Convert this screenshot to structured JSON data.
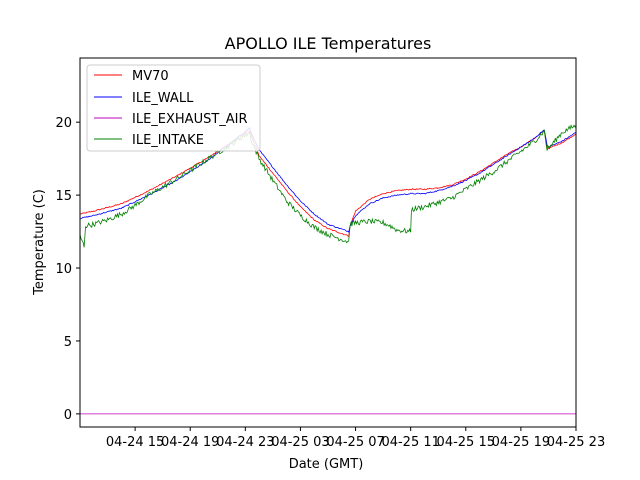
{
  "chart_data": {
    "type": "line",
    "title": "APOLLO ILE Temperatures",
    "xlabel": "Date (GMT)",
    "ylabel": "Temperature (C)",
    "x_unit": "hours since 04-24 11:00 GMT",
    "xlim": [
      0,
      36
    ],
    "ylim": [
      -0.9,
      24.4
    ],
    "x_ticks": [
      {
        "value": 4,
        "label": "04-24 15"
      },
      {
        "value": 8,
        "label": "04-24 19"
      },
      {
        "value": 12,
        "label": "04-24 23"
      },
      {
        "value": 16,
        "label": "04-25 03"
      },
      {
        "value": 20,
        "label": "04-25 07"
      },
      {
        "value": 24,
        "label": "04-25 11"
      },
      {
        "value": 28,
        "label": "04-25 15"
      },
      {
        "value": 32,
        "label": "04-25 19"
      },
      {
        "value": 36,
        "label": "04-25 23"
      }
    ],
    "y_ticks": [
      {
        "value": 0,
        "label": "0"
      },
      {
        "value": 5,
        "label": "5"
      },
      {
        "value": 10,
        "label": "10"
      },
      {
        "value": 15,
        "label": "15"
      },
      {
        "value": 20,
        "label": "20"
      }
    ],
    "legend_position": "top-left",
    "series": [
      {
        "name": "MV70",
        "color": "#ff0000",
        "points": [
          [
            0,
            13.7
          ],
          [
            1,
            13.9
          ],
          [
            3,
            14.4
          ],
          [
            5,
            15.3
          ],
          [
            7,
            16.3
          ],
          [
            9,
            17.4
          ],
          [
            11,
            18.6
          ],
          [
            12.3,
            19.4
          ],
          [
            12.5,
            18.9
          ],
          [
            13,
            17.7
          ],
          [
            14,
            16.5
          ],
          [
            15,
            15.3
          ],
          [
            16,
            14.2
          ],
          [
            17,
            13.3
          ],
          [
            18,
            12.7
          ],
          [
            19.5,
            12.2
          ],
          [
            19.6,
            12.9
          ],
          [
            20,
            13.9
          ],
          [
            21,
            14.7
          ],
          [
            22,
            15.1
          ],
          [
            23,
            15.3
          ],
          [
            24,
            15.4
          ],
          [
            25,
            15.4
          ],
          [
            26,
            15.5
          ],
          [
            27,
            15.7
          ],
          [
            28,
            16.1
          ],
          [
            29,
            16.6
          ],
          [
            30,
            17.2
          ],
          [
            31,
            17.8
          ],
          [
            32,
            18.3
          ],
          [
            33,
            18.9
          ],
          [
            33.7,
            19.4
          ],
          [
            33.9,
            18.3
          ],
          [
            34,
            18.2
          ],
          [
            35,
            18.6
          ],
          [
            36,
            19.2
          ]
        ]
      },
      {
        "name": "ILE_WALL",
        "color": "#0000ff",
        "points": [
          [
            0,
            13.4
          ],
          [
            1,
            13.6
          ],
          [
            3,
            14.1
          ],
          [
            5,
            15.0
          ],
          [
            7,
            16.0
          ],
          [
            9,
            17.2
          ],
          [
            11,
            18.6
          ],
          [
            12.3,
            19.6
          ],
          [
            12.5,
            19.1
          ],
          [
            13,
            18.1
          ],
          [
            14,
            16.9
          ],
          [
            15,
            15.7
          ],
          [
            16,
            14.6
          ],
          [
            17,
            13.7
          ],
          [
            18,
            13.0
          ],
          [
            19.5,
            12.5
          ],
          [
            19.6,
            12.9
          ],
          [
            20,
            13.6
          ],
          [
            21,
            14.4
          ],
          [
            22,
            14.8
          ],
          [
            23,
            15.0
          ],
          [
            24,
            15.1
          ],
          [
            25,
            15.1
          ],
          [
            26,
            15.3
          ],
          [
            27,
            15.6
          ],
          [
            28,
            16.0
          ],
          [
            29,
            16.5
          ],
          [
            30,
            17.1
          ],
          [
            31,
            17.7
          ],
          [
            32,
            18.3
          ],
          [
            33,
            18.9
          ],
          [
            33.7,
            19.5
          ],
          [
            33.9,
            18.4
          ],
          [
            34,
            18.3
          ],
          [
            35,
            18.7
          ],
          [
            36,
            19.3
          ]
        ]
      },
      {
        "name": "ILE_EXHAUST_AIR",
        "color": "#bf00bf",
        "points": [
          [
            0,
            0.0
          ],
          [
            36,
            0.0
          ]
        ]
      },
      {
        "name": "ILE_INTAKE",
        "color": "#008000",
        "points": [
          [
            0,
            12.2
          ],
          [
            0.3,
            11.5
          ],
          [
            0.4,
            12.9
          ],
          [
            1,
            13.0
          ],
          [
            2,
            13.3
          ],
          [
            3,
            13.7
          ],
          [
            4,
            14.3
          ],
          [
            5,
            15.0
          ],
          [
            7,
            16.1
          ],
          [
            9,
            17.3
          ],
          [
            11,
            18.5
          ],
          [
            12.3,
            19.3
          ],
          [
            12.5,
            18.6
          ],
          [
            13,
            17.5
          ],
          [
            14,
            16.0
          ],
          [
            15,
            14.6
          ],
          [
            16,
            13.6
          ],
          [
            17,
            12.8
          ],
          [
            18,
            12.3
          ],
          [
            19.5,
            11.8
          ],
          [
            19.6,
            13.0
          ],
          [
            20,
            13.1
          ],
          [
            21,
            13.2
          ],
          [
            22,
            13.1
          ],
          [
            22.5,
            12.9
          ],
          [
            23,
            12.6
          ],
          [
            24,
            12.5
          ],
          [
            24.05,
            14.0
          ],
          [
            25,
            14.2
          ],
          [
            26,
            14.5
          ],
          [
            27,
            14.8
          ],
          [
            28,
            15.4
          ],
          [
            29,
            16.0
          ],
          [
            30,
            16.6
          ],
          [
            31,
            17.3
          ],
          [
            32,
            18.0
          ],
          [
            33,
            18.7
          ],
          [
            33.7,
            19.4
          ],
          [
            33.9,
            18.1
          ],
          [
            34,
            18.2
          ],
          [
            35,
            19.3
          ],
          [
            36,
            19.8
          ]
        ]
      }
    ]
  }
}
